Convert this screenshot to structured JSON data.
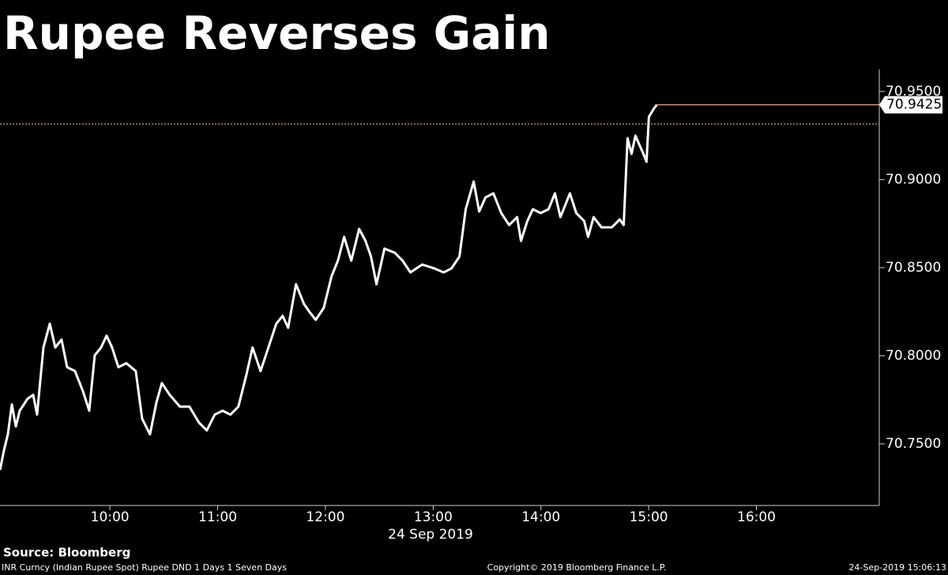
{
  "chart_data": {
    "type": "line",
    "title": "Rupee Reverses Gain",
    "x_label": "24 Sep 2019",
    "source": "Source: Bloomberg",
    "footer_left": "INR Curncy (Indian Rupee Spot) Rupee DND 1 Days 1 Seven Days",
    "footer_center": "Copyright© 2019 Bloomberg Finance L.P.",
    "footer_right": "24-Sep-2019 15:06:13",
    "xlim": [
      8.98,
      17.14
    ],
    "ylim": [
      70.715,
      70.9625
    ],
    "xticks": [
      {
        "value": 10,
        "label": "10:00"
      },
      {
        "value": 11,
        "label": "11:00"
      },
      {
        "value": 12,
        "label": "12:00"
      },
      {
        "value": 13,
        "label": "13:00"
      },
      {
        "value": 14,
        "label": "14:00"
      },
      {
        "value": 15,
        "label": "15:00"
      },
      {
        "value": 16,
        "label": "16:00"
      }
    ],
    "yticks": [
      {
        "value": 70.75,
        "label": "70.7500"
      },
      {
        "value": 70.8,
        "label": "70.8000"
      },
      {
        "value": 70.85,
        "label": "70.8500"
      },
      {
        "value": 70.9,
        "label": "70.9000"
      },
      {
        "value": 70.95,
        "label": "70.9500"
      }
    ],
    "reference_value": 70.9316,
    "reference_color": "#f0b060",
    "last_value_line_color": "#f0a070",
    "x": [
      8.98,
      9.017,
      9.053,
      9.09,
      9.127,
      9.163,
      9.236,
      9.288,
      9.324,
      9.383,
      9.442,
      9.493,
      9.551,
      9.603,
      9.676,
      9.749,
      9.808,
      9.859,
      9.918,
      9.969,
      10.02,
      10.079,
      10.152,
      10.24,
      10.299,
      10.372,
      10.431,
      10.482,
      10.555,
      10.65,
      10.738,
      10.826,
      10.899,
      10.973,
      11.046,
      11.119,
      11.192,
      11.266,
      11.324,
      11.398,
      11.471,
      11.544,
      11.603,
      11.654,
      11.727,
      11.801,
      11.852,
      11.91,
      11.984,
      12.057,
      12.116,
      12.174,
      12.24,
      12.313,
      12.372,
      12.423,
      12.474,
      12.548,
      12.643,
      12.716,
      12.789,
      12.899,
      13.009,
      13.097,
      13.17,
      13.244,
      13.302,
      13.376,
      13.427,
      13.486,
      13.559,
      13.632,
      13.705,
      13.779,
      13.815,
      13.874,
      13.925,
      13.998,
      14.071,
      14.13,
      14.181,
      14.269,
      14.328,
      14.401,
      14.438,
      14.489,
      14.562,
      14.658,
      14.731,
      14.768,
      14.804,
      14.841,
      14.877,
      14.951,
      14.98,
      15.002,
      15.046,
      15.075
    ],
    "series": [
      {
        "name": "INR Curncy",
        "color": "#ffffff",
        "values": [
          70.7352,
          70.7464,
          70.7554,
          70.7724,
          70.7599,
          70.7688,
          70.7756,
          70.7778,
          70.7666,
          70.8047,
          70.8182,
          70.8047,
          70.8092,
          70.7935,
          70.7913,
          70.78,
          70.7688,
          70.8002,
          70.8047,
          70.8114,
          70.8047,
          70.7935,
          70.7958,
          70.7913,
          70.7643,
          70.7554,
          70.7733,
          70.7845,
          70.7778,
          70.7711,
          70.7711,
          70.7621,
          70.7576,
          70.7666,
          70.7688,
          70.7666,
          70.7711,
          70.789,
          70.8047,
          70.7913,
          70.8047,
          70.8182,
          70.8226,
          70.8159,
          70.8406,
          70.8294,
          70.8249,
          70.8204,
          70.8271,
          70.8451,
          70.854,
          70.8675,
          70.854,
          70.872,
          70.8652,
          70.8563,
          70.8406,
          70.8608,
          70.8585,
          70.854,
          70.8473,
          70.8518,
          70.8496,
          70.8473,
          70.8496,
          70.8563,
          70.8832,
          70.8989,
          70.8819,
          70.8899,
          70.8922,
          70.881,
          70.8742,
          70.8787,
          70.8652,
          70.8765,
          70.8832,
          70.881,
          70.8832,
          70.8922,
          70.8787,
          70.8922,
          70.881,
          70.8765,
          70.8675,
          70.8787,
          70.8729,
          70.8729,
          70.8774,
          70.8742,
          70.9235,
          70.9146,
          70.9249,
          70.9146,
          70.9101,
          70.9356,
          70.9401,
          70.9425
        ]
      }
    ]
  }
}
